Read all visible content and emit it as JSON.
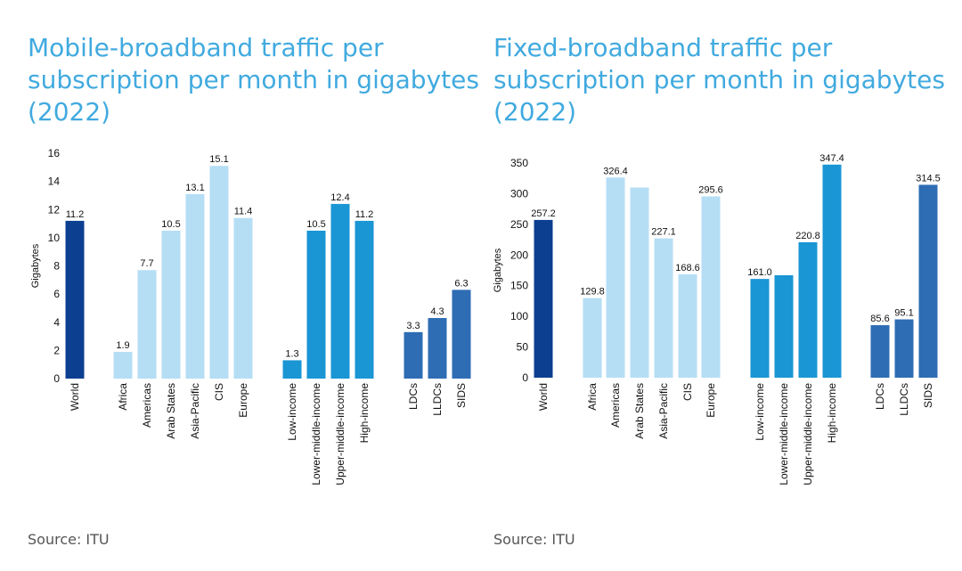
{
  "colors": {
    "title": "#41aadf",
    "world": "#0d3f91",
    "regions": "#b5def5",
    "income": "#1a96d4",
    "groups": "#2e6db4"
  },
  "left": {
    "title_lines": [
      "Mobile-broadband traffic per",
      "subscription per month in gigabytes",
      "(2022)"
    ],
    "source": "Source: ITU"
  },
  "right": {
    "title_lines": [
      "Fixed-broadband traffic per",
      "subscription per month in gigabytes",
      "(2022)"
    ],
    "source": "Source: ITU"
  },
  "chart_data": [
    {
      "type": "bar",
      "title": "Mobile-broadband traffic per subscription per month in gigabytes (2022)",
      "ylabel": "Gigabytes",
      "ylim": [
        0,
        16
      ],
      "yticks": [
        0,
        2,
        4,
        6,
        8,
        10,
        12,
        14,
        16
      ],
      "grid": false,
      "categories": [
        "World",
        "Africa",
        "Americas",
        "Arab States",
        "Asia-Pacific",
        "CIS",
        "Europe",
        "Low-income",
        "Lower-middle-income",
        "Upper-middle-income",
        "High-income",
        "LDCs",
        "LLDCs",
        "SIDS"
      ],
      "values": [
        11.2,
        1.9,
        7.7,
        10.5,
        13.1,
        15.1,
        11.4,
        1.3,
        10.5,
        12.4,
        11.2,
        3.3,
        4.3,
        6.3
      ],
      "labels": [
        "11.2",
        "1.9",
        "7.7",
        "10.5",
        "13.1",
        "15.1",
        "11.4",
        "1.3",
        "10.5",
        "12.4",
        "11.2",
        "3.3",
        "4.3",
        "6.3"
      ],
      "groups": [
        "world",
        "regions",
        "regions",
        "regions",
        "regions",
        "regions",
        "regions",
        "income",
        "income",
        "income",
        "income",
        "groups",
        "groups",
        "groups"
      ]
    },
    {
      "type": "bar",
      "title": "Fixed-broadband traffic per subscription per month in gigabytes (2022)",
      "ylabel": "Gigabytes",
      "ylim": [
        0,
        350
      ],
      "yticks": [
        0,
        50,
        100,
        150,
        200,
        250,
        300,
        350
      ],
      "grid": false,
      "categories": [
        "World",
        "Africa",
        "Americas",
        "Arab States",
        "Asia-Pacific",
        "CIS",
        "Europe",
        "Low-income",
        "Lower-middle-income",
        "Upper-middle-income",
        "High-income",
        "LDCs",
        "LLDCs",
        "SIDS"
      ],
      "values": [
        257.2,
        129.8,
        326.4,
        310,
        227.1,
        168.6,
        295.6,
        161.0,
        167,
        220.8,
        347.4,
        85.6,
        95.1,
        314.5
      ],
      "labels": [
        "257.2",
        "129.8",
        "326.4",
        "",
        "227.1",
        "168.6",
        "295.6",
        "161.0",
        "",
        "220.8",
        "347.4",
        "85.6",
        "95.1",
        "314.5"
      ],
      "groups": [
        "world",
        "regions",
        "regions",
        "regions",
        "regions",
        "regions",
        "regions",
        "income",
        "income",
        "income",
        "income",
        "groups",
        "groups",
        "groups"
      ]
    }
  ]
}
